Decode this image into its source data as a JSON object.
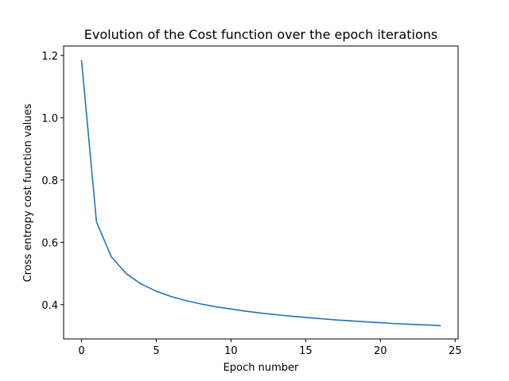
{
  "chart_data": {
    "type": "line",
    "title": "Evolution of the Cost function over the epoch iterations",
    "xlabel": "Epoch number",
    "ylabel": "Cross entropy cost function values",
    "xlim": [
      -1.2,
      25.2
    ],
    "ylim": [
      0.29,
      1.23
    ],
    "xticks": [
      0,
      5,
      10,
      15,
      20,
      25
    ],
    "yticks": [
      0.4,
      0.6,
      0.8,
      1.0,
      1.2
    ],
    "xtick_labels": [
      "0",
      "5",
      "10",
      "15",
      "20",
      "25"
    ],
    "ytick_labels": [
      "0.4",
      "0.6",
      "0.8",
      "1.0",
      "1.2"
    ],
    "grid": false,
    "series": [
      {
        "color": "#1f77b4",
        "x": [
          0,
          1,
          2,
          3,
          4,
          5,
          6,
          7,
          8,
          9,
          10,
          11,
          12,
          13,
          14,
          15,
          16,
          17,
          18,
          19,
          20,
          21,
          22,
          23,
          24
        ],
        "y": [
          1.183,
          0.665,
          0.553,
          0.499,
          0.466,
          0.443,
          0.426,
          0.413,
          0.402,
          0.393,
          0.386,
          0.379,
          0.373,
          0.368,
          0.363,
          0.359,
          0.355,
          0.351,
          0.348,
          0.345,
          0.342,
          0.339,
          0.337,
          0.335,
          0.333
        ]
      }
    ]
  }
}
